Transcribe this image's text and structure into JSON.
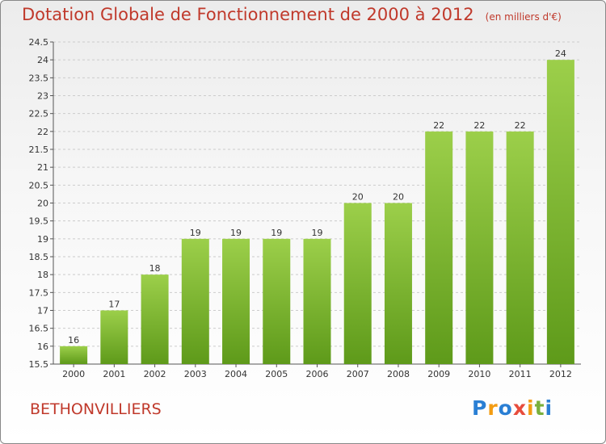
{
  "chart_data": {
    "type": "bar",
    "title": "Dotation Globale de Fonctionnement de 2000 à 2012",
    "subtitle": "(en milliers d'€)",
    "categories": [
      "2000",
      "2001",
      "2002",
      "2003",
      "2004",
      "2005",
      "2006",
      "2007",
      "2008",
      "2009",
      "2010",
      "2011",
      "2012"
    ],
    "values": [
      16,
      17,
      18,
      19,
      19,
      19,
      19,
      20,
      20,
      22,
      22,
      22,
      24
    ],
    "value_labels": [
      "16",
      "17",
      "18",
      "19",
      "19",
      "19",
      "19",
      "20",
      "20",
      "22",
      "22",
      "22",
      "24"
    ],
    "ylim": [
      15.5,
      24.5
    ],
    "yticks": [
      15.5,
      16,
      16.5,
      17,
      17.5,
      18,
      18.5,
      19,
      19.5,
      20,
      20.5,
      21,
      21.5,
      22,
      22.5,
      23,
      23.5,
      24,
      24.5
    ],
    "ytick_labels": [
      "15.5",
      "16",
      "16.5",
      "17",
      "17.5",
      "18",
      "18.5",
      "19",
      "19.5",
      "20",
      "20.5",
      "21",
      "21.5",
      "22",
      "22.5",
      "23",
      "23.5",
      "24",
      "24.5"
    ],
    "grid": true,
    "bar_color_top": "#9ccf4a",
    "bar_color_bottom": "#5e9a1a"
  },
  "place_name": "BETHONVILLIERS",
  "logo": {
    "letters": [
      "P",
      "r",
      "o",
      "x",
      "i",
      "t",
      "i"
    ],
    "colors": [
      "#2a7fd4",
      "#f39c12",
      "#2a7fd4",
      "#e74c3c",
      "#f39c12",
      "#7ab03c",
      "#2a7fd4"
    ]
  },
  "colors": {
    "title": "#c0392b",
    "grid": "#cccccc",
    "axis": "#555555"
  }
}
